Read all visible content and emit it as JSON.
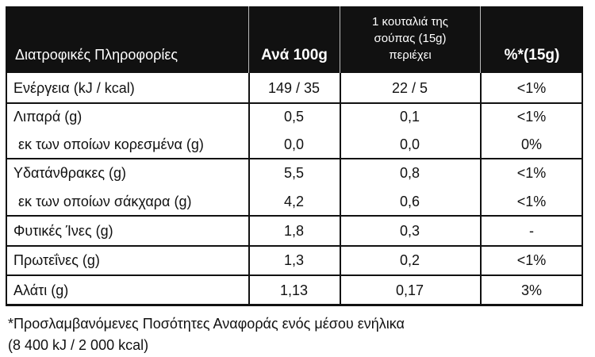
{
  "table": {
    "header": [
      [
        "Διατροφικές Πληροφορίες"
      ],
      [
        "Ανά 100g"
      ],
      [
        "1 κουταλιά της",
        "σούπας (15g)",
        "περιέχει"
      ],
      [
        "%*(15g)"
      ]
    ],
    "rows": [
      [
        [
          "Ενέργεια (kJ / kcal)",
          "149 / 35",
          "22 / 5",
          "<1%"
        ]
      ],
      [
        [
          "Λιπαρά (g)",
          "0,5",
          "0,1",
          "<1%"
        ],
        [
          "εκ των οποίων κορεσμένα (g)",
          "0,0",
          "0,0",
          "0%"
        ]
      ],
      [
        [
          "Υδατάνθρακες (g)",
          "5,5",
          "0,8",
          "<1%"
        ],
        [
          "εκ των οποίων σάκχαρα (g)",
          "4,2",
          "0,6",
          "<1%"
        ]
      ],
      [
        [
          "Φυτικές Ίνες (g)",
          "1,8",
          "0,3",
          "-"
        ]
      ],
      [
        [
          "Πρωτεΐνες (g)",
          "1,3",
          "0,2",
          "<1%"
        ]
      ],
      [
        [
          "Αλάτι (g)",
          "1,13",
          "0,17",
          "3%"
        ]
      ]
    ]
  },
  "footnote": [
    "*Προσλαμβανόμενες Ποσότητες Αναφοράς ενός μέσου ενήλικα",
    "(8 400 kJ / 2 000 kcal)"
  ]
}
